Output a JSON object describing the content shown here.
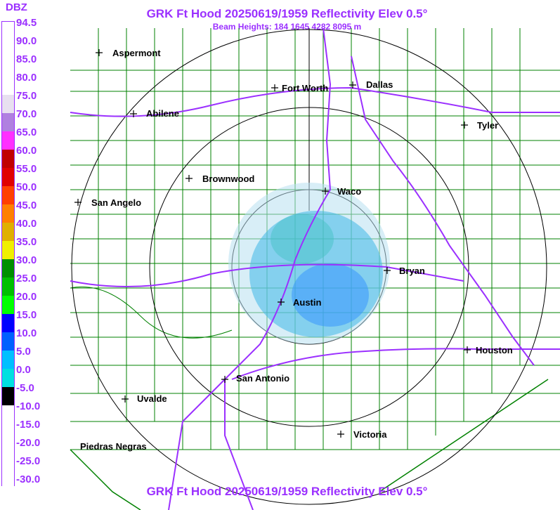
{
  "title": "GRK Ft Hood 20250619/1959 Reflectivity Elev 0.5°",
  "subtitle": "Beam Heights: 184 1645 4282 8095 m",
  "footer_title": "GRK Ft Hood 20250619/1959 Reflectivity Elev 0.5°",
  "legend": {
    "unit": "DBZ",
    "labels": [
      "94.5",
      "90.0",
      "85.0",
      "80.0",
      "75.0",
      "70.0",
      "65.0",
      "60.0",
      "55.0",
      "50.0",
      "45.0",
      "40.0",
      "35.0",
      "30.0",
      "25.0",
      "20.0",
      "15.0",
      "10.0",
      "5.0",
      "0.0",
      "-5.0",
      "-10.0",
      "-15.0",
      "-20.0",
      "-25.0",
      "-30.0"
    ],
    "colors": [
      "#ffffff",
      "#ffffff",
      "#ffffff",
      "#ffffff",
      "#e8e0f0",
      "#b080e0",
      "#ff30ff",
      "#c00000",
      "#e00000",
      "#ff4000",
      "#ff8000",
      "#e0b000",
      "#f0f000",
      "#009000",
      "#00c000",
      "#00ff00",
      "#0000ff",
      "#0060ff",
      "#00c0ff",
      "#00e0e0",
      "#000000",
      "#ffffff",
      "#ffffff",
      "#ffffff",
      "#ffffff",
      "#ffffff"
    ]
  },
  "cities": [
    {
      "name": "Aspermont"
    },
    {
      "name": "Fort Worth"
    },
    {
      "name": "Dallas"
    },
    {
      "name": "Abilene"
    },
    {
      "name": "Tyler"
    },
    {
      "name": "Brownwood"
    },
    {
      "name": "Waco"
    },
    {
      "name": "San Angelo"
    },
    {
      "name": "Bryan"
    },
    {
      "name": "Austin"
    },
    {
      "name": "Houston"
    },
    {
      "name": "San Antonio"
    },
    {
      "name": "Uvalde"
    },
    {
      "name": "Victoria"
    },
    {
      "name": "Piedras Negras"
    }
  ],
  "colors": {
    "accent": "#9b30ff",
    "county_lines": "#008000",
    "highways": "#9b30ff",
    "range_rings": "#000000"
  }
}
